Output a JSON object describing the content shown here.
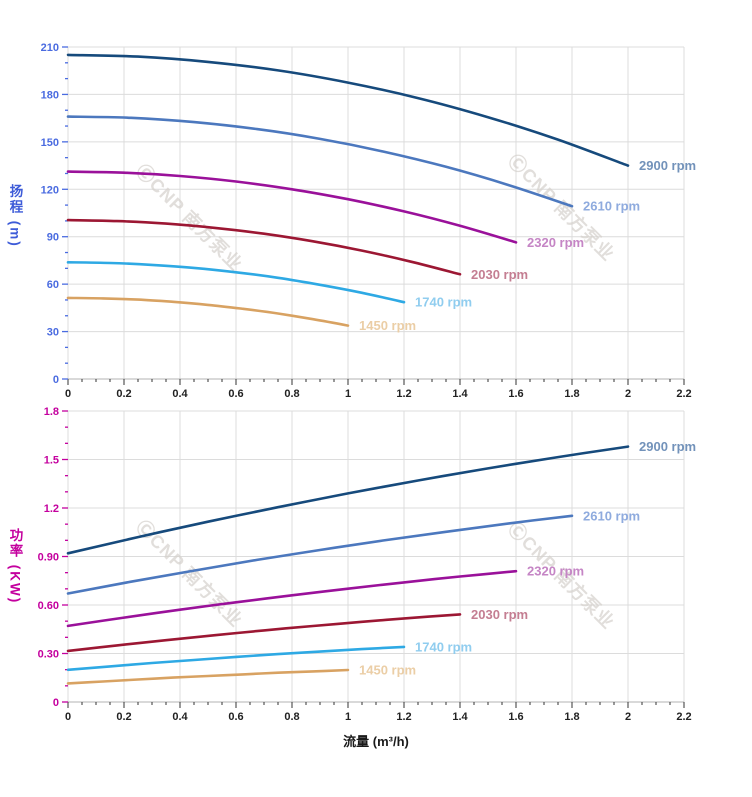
{
  "page": {
    "background": "#ffffff"
  },
  "watermark": {
    "text": "ⒸCNP 南方泵业",
    "color": "#d5d1cc"
  },
  "axis_titles": {
    "head_y": "扬程 (m)",
    "power_y": "功率 (KW)",
    "x": "流量 (m³/h)",
    "head_y_color": "#3d5bd8",
    "power_y_color": "#c4009e"
  },
  "chart_data": [
    {
      "type": "line",
      "name": "head-vs-flow",
      "title": "",
      "ylabel": "扬程 (m)",
      "xlabel": "流量 (m³/h)",
      "xlim": [
        0,
        2.2
      ],
      "ylim": [
        0,
        210
      ],
      "grid": true,
      "legend_position": "curve-end-labels",
      "x_tick_labels": [
        "0",
        "0.2",
        "0.4",
        "0.6",
        "0.8",
        "1",
        "1.2",
        "1.4",
        "1.6",
        "1.8",
        "2",
        "2.2"
      ],
      "x_tick_values": [
        0,
        0.2,
        0.4,
        0.6,
        0.8,
        1,
        1.2,
        1.4,
        1.6,
        1.8,
        2,
        2.2
      ],
      "x_minor_step": 0.05,
      "y_tick_labels": [
        "0",
        "30",
        "60",
        "90",
        "120",
        "150",
        "180",
        "210"
      ],
      "y_tick_values": [
        0,
        30,
        60,
        90,
        120,
        150,
        180,
        210
      ],
      "y_minor_step": 10,
      "axis_color": "#4a6be0",
      "x_axis_text_color": "#222222",
      "series": [
        {
          "name": "2900 rpm",
          "color": "#164a7c",
          "label_color": "#7292ba",
          "x": [
            0,
            0.25,
            0.5,
            0.75,
            1,
            1.25,
            1.5,
            1.75,
            2
          ],
          "y": [
            205,
            203.9,
            200.6,
            195.2,
            187.5,
            177.7,
            165.6,
            151.4,
            135
          ]
        },
        {
          "name": "2610 rpm",
          "color": "#4c78be",
          "label_color": "#8fabde",
          "x": [
            0,
            0.225,
            0.45,
            0.675,
            0.9,
            1.125,
            1.35,
            1.575,
            1.8
          ],
          "y": [
            166,
            165.2,
            162.5,
            158.1,
            151.9,
            143.9,
            134.2,
            122.6,
            109.3
          ]
        },
        {
          "name": "2320 rpm",
          "color": "#9a119a",
          "label_color": "#c585c5",
          "x": [
            0,
            0.2,
            0.4,
            0.6,
            0.8,
            1,
            1.2,
            1.4,
            1.6
          ],
          "y": [
            131.2,
            130.5,
            128.4,
            124.9,
            120,
            113.7,
            106,
            96.9,
            86.4
          ]
        },
        {
          "name": "2030 rpm",
          "color": "#9c1733",
          "label_color": "#c47e92",
          "x": [
            0,
            0.175,
            0.35,
            0.525,
            0.7,
            0.875,
            1.05,
            1.225,
            1.4
          ],
          "y": [
            100.5,
            99.9,
            98.3,
            95.6,
            91.9,
            87.1,
            81.2,
            74.2,
            66.2
          ]
        },
        {
          "name": "1740 rpm",
          "color": "#2ea9e4",
          "label_color": "#90cdef",
          "x": [
            0,
            0.15,
            0.3,
            0.45,
            0.6,
            0.75,
            0.9,
            1.05,
            1.2
          ],
          "y": [
            73.8,
            73.4,
            72.2,
            70.3,
            67.5,
            64,
            59.6,
            54.5,
            48.6
          ]
        },
        {
          "name": "1450 rpm",
          "color": "#d8a262",
          "label_color": "#ebcea6",
          "x": [
            0,
            0.125,
            0.25,
            0.375,
            0.5,
            0.625,
            0.75,
            0.875,
            1
          ],
          "y": [
            51.3,
            51,
            50.2,
            48.8,
            46.9,
            44.4,
            41.4,
            37.8,
            33.8
          ]
        }
      ]
    },
    {
      "type": "line",
      "name": "power-vs-flow",
      "title": "",
      "ylabel": "功率 (KW)",
      "xlabel": "流量 (m³/h)",
      "xlim": [
        0,
        2.2
      ],
      "ylim": [
        0,
        1.8
      ],
      "grid": true,
      "legend_position": "curve-end-labels",
      "x_tick_labels": [
        "0",
        "0.2",
        "0.4",
        "0.6",
        "0.8",
        "1",
        "1.2",
        "1.4",
        "1.6",
        "1.8",
        "2",
        "2.2"
      ],
      "x_tick_values": [
        0,
        0.2,
        0.4,
        0.6,
        0.8,
        1,
        1.2,
        1.4,
        1.6,
        1.8,
        2,
        2.2
      ],
      "x_minor_step": 0.05,
      "y_tick_labels": [
        "0",
        "0.30",
        "0.60",
        "0.90",
        "1.2",
        "1.5",
        "1.8"
      ],
      "y_tick_values": [
        0,
        0.3,
        0.6,
        0.9,
        1.2,
        1.5,
        1.8
      ],
      "y_minor_step": 0.1,
      "axis_color": "#c4009e",
      "x_axis_text_color": "#222222",
      "series": [
        {
          "name": "2900 rpm",
          "color": "#164a7c",
          "label_color": "#7292ba",
          "x": [
            0,
            0.25,
            0.5,
            0.75,
            1,
            1.25,
            1.5,
            1.75,
            2
          ],
          "y": [
            0.92,
            1.02,
            1.115,
            1.205,
            1.29,
            1.37,
            1.445,
            1.515,
            1.58
          ]
        },
        {
          "name": "2610 rpm",
          "color": "#4c78be",
          "label_color": "#8fabde",
          "x": [
            0,
            0.225,
            0.45,
            0.675,
            0.9,
            1.125,
            1.35,
            1.575,
            1.8
          ],
          "y": [
            0.671,
            0.744,
            0.813,
            0.879,
            0.94,
            0.999,
            1.053,
            1.105,
            1.152
          ]
        },
        {
          "name": "2320 rpm",
          "color": "#9a119a",
          "label_color": "#c585c5",
          "x": [
            0,
            0.2,
            0.4,
            0.6,
            0.8,
            1,
            1.2,
            1.4,
            1.6
          ],
          "y": [
            0.471,
            0.522,
            0.571,
            0.617,
            0.66,
            0.701,
            0.74,
            0.776,
            0.809
          ]
        },
        {
          "name": "2030 rpm",
          "color": "#9c1733",
          "label_color": "#c47e92",
          "x": [
            0,
            0.175,
            0.35,
            0.525,
            0.7,
            0.875,
            1.05,
            1.225,
            1.4
          ],
          "y": [
            0.316,
            0.35,
            0.382,
            0.413,
            0.443,
            0.47,
            0.496,
            0.52,
            0.542
          ]
        },
        {
          "name": "1740 rpm",
          "color": "#2ea9e4",
          "label_color": "#90cdef",
          "x": [
            0,
            0.15,
            0.3,
            0.45,
            0.6,
            0.75,
            0.9,
            1.05,
            1.2
          ],
          "y": [
            0.199,
            0.22,
            0.241,
            0.26,
            0.279,
            0.296,
            0.312,
            0.327,
            0.341
          ]
        },
        {
          "name": "1450 rpm",
          "color": "#d8a262",
          "label_color": "#ebcea6",
          "x": [
            0,
            0.125,
            0.25,
            0.375,
            0.5,
            0.625,
            0.75,
            0.875,
            1
          ],
          "y": [
            0.115,
            0.127,
            0.139,
            0.151,
            0.161,
            0.171,
            0.181,
            0.189,
            0.198
          ]
        }
      ]
    }
  ]
}
